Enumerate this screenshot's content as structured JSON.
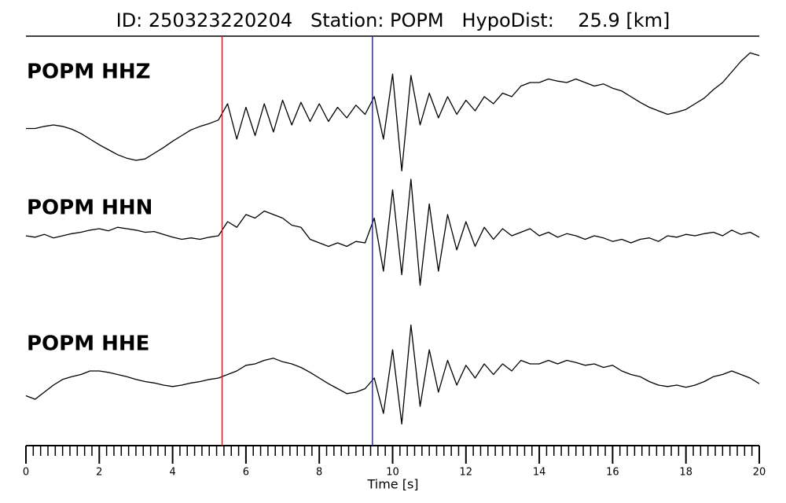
{
  "chart_data": {
    "type": "line",
    "title": "ID: 250323220204   Station: POPM   HypoDist:    25.9 [km]",
    "x_label": "Time [s]",
    "xlim": [
      0,
      20
    ],
    "xticks": [
      0,
      2,
      4,
      6,
      8,
      10,
      12,
      14,
      16,
      18,
      20
    ],
    "xminorticks": [
      0.2,
      0.4,
      0.6,
      0.8,
      1,
      1.2,
      1.4,
      1.6,
      1.8,
      2.2,
      2.4,
      2.6,
      2.8,
      3,
      3.2,
      3.4,
      3.6,
      3.8,
      4.2,
      4.4,
      4.6,
      4.8,
      5,
      5.2,
      5.4,
      5.6,
      5.8,
      6.2,
      6.4,
      6.6,
      6.8,
      7,
      7.2,
      7.4,
      7.6,
      7.8,
      8.2,
      8.4,
      8.6,
      8.8,
      9,
      9.2,
      9.4,
      9.6,
      9.8,
      10.2,
      10.4,
      10.6,
      10.8,
      11,
      11.2,
      11.4,
      11.6,
      11.8,
      12.2,
      12.4,
      12.6,
      12.8,
      13,
      13.2,
      13.4,
      13.6,
      13.8,
      14.2,
      14.4,
      14.6,
      14.8,
      15,
      15.2,
      15.4,
      15.6,
      15.8,
      16.2,
      16.4,
      16.6,
      16.8,
      17,
      17.2,
      17.4,
      17.6,
      17.8,
      18.2,
      18.4,
      18.6,
      18.8,
      19,
      19.2,
      19.4,
      19.6,
      19.8
    ],
    "label_color": "#4e9a06",
    "x": [
      0,
      0.25,
      0.5,
      0.75,
      1,
      1.25,
      1.5,
      1.75,
      2,
      2.25,
      2.5,
      2.75,
      3,
      3.25,
      3.5,
      3.75,
      4,
      4.25,
      4.5,
      4.75,
      5,
      5.25,
      5.5,
      5.75,
      6,
      6.25,
      6.5,
      6.75,
      7,
      7.25,
      7.5,
      7.75,
      8,
      8.25,
      8.5,
      8.75,
      9,
      9.25,
      9.5,
      9.75,
      10,
      10.25,
      10.5,
      10.75,
      11,
      11.25,
      11.5,
      11.75,
      12,
      12.25,
      12.5,
      12.75,
      13,
      13.25,
      13.5,
      13.75,
      14,
      14.25,
      14.5,
      14.75,
      15,
      15.25,
      15.5,
      15.75,
      16,
      16.25,
      16.5,
      16.75,
      17,
      17.25,
      17.5,
      17.75,
      18,
      18.25,
      18.5,
      18.75,
      19,
      19.25,
      19.5,
      19.75,
      20
    ],
    "series": [
      {
        "name": "POPM HHZ",
        "color": "#000000",
        "values": [
          -0.15,
          -0.15,
          -0.12,
          -0.1,
          -0.12,
          -0.16,
          -0.22,
          -0.3,
          -0.38,
          -0.45,
          -0.52,
          -0.57,
          -0.6,
          -0.58,
          -0.5,
          -0.42,
          -0.33,
          -0.25,
          -0.17,
          -0.12,
          -0.08,
          -0.03,
          0.2,
          -0.3,
          0.15,
          -0.25,
          0.2,
          -0.2,
          0.25,
          -0.1,
          0.22,
          -0.05,
          0.2,
          -0.05,
          0.15,
          0.0,
          0.18,
          0.05,
          0.3,
          -0.3,
          0.62,
          -0.75,
          0.6,
          -0.1,
          0.35,
          0.0,
          0.3,
          0.05,
          0.25,
          0.1,
          0.3,
          0.2,
          0.35,
          0.3,
          0.45,
          0.5,
          0.5,
          0.55,
          0.52,
          0.5,
          0.55,
          0.5,
          0.45,
          0.48,
          0.42,
          0.38,
          0.3,
          0.22,
          0.15,
          0.1,
          0.05,
          0.08,
          0.12,
          0.2,
          0.28,
          0.4,
          0.5,
          0.65,
          0.8,
          0.92,
          0.88
        ]
      },
      {
        "name": "POPM HHN",
        "color": "#000000",
        "values": [
          0,
          -0.02,
          0.02,
          -0.03,
          0.0,
          0.03,
          0.05,
          0.08,
          0.1,
          0.07,
          0.12,
          0.1,
          0.08,
          0.05,
          0.06,
          0.02,
          -0.02,
          -0.05,
          -0.03,
          -0.05,
          -0.02,
          0.0,
          0.2,
          0.12,
          0.3,
          0.25,
          0.35,
          0.3,
          0.25,
          0.15,
          0.12,
          -0.05,
          -0.1,
          -0.15,
          -0.1,
          -0.15,
          -0.08,
          -0.1,
          0.25,
          -0.5,
          0.65,
          -0.55,
          0.8,
          -0.7,
          0.45,
          -0.5,
          0.3,
          -0.2,
          0.2,
          -0.15,
          0.12,
          -0.05,
          0.1,
          0.0,
          0.05,
          0.1,
          0.0,
          0.05,
          -0.02,
          0.03,
          0.0,
          -0.05,
          0.0,
          -0.03,
          -0.08,
          -0.05,
          -0.1,
          -0.05,
          -0.03,
          -0.08,
          0.0,
          -0.02,
          0.02,
          0.0,
          0.03,
          0.05,
          0.0,
          0.08,
          0.02,
          0.05,
          -0.02
        ]
      },
      {
        "name": "POPM HHE",
        "color": "#000000",
        "values": [
          -0.15,
          -0.2,
          -0.1,
          0.0,
          0.08,
          0.12,
          0.15,
          0.2,
          0.2,
          0.18,
          0.15,
          0.12,
          0.08,
          0.05,
          0.03,
          0.0,
          -0.02,
          0.0,
          0.03,
          0.05,
          0.08,
          0.1,
          0.15,
          0.2,
          0.28,
          0.3,
          0.35,
          0.38,
          0.33,
          0.3,
          0.25,
          0.18,
          0.1,
          0.02,
          -0.05,
          -0.12,
          -0.1,
          -0.05,
          0.1,
          -0.4,
          0.5,
          -0.55,
          0.85,
          -0.3,
          0.5,
          -0.1,
          0.35,
          0.0,
          0.28,
          0.1,
          0.3,
          0.15,
          0.3,
          0.2,
          0.35,
          0.3,
          0.3,
          0.35,
          0.3,
          0.35,
          0.32,
          0.28,
          0.3,
          0.25,
          0.28,
          0.2,
          0.15,
          0.12,
          0.05,
          0.0,
          -0.02,
          0.0,
          -0.03,
          0.0,
          0.05,
          0.12,
          0.15,
          0.2,
          0.15,
          0.1,
          0.02
        ]
      }
    ],
    "picks": [
      {
        "x": 5.35,
        "color": "#e31a1c"
      },
      {
        "x": 9.45,
        "color": "#2b2bb8"
      }
    ]
  }
}
